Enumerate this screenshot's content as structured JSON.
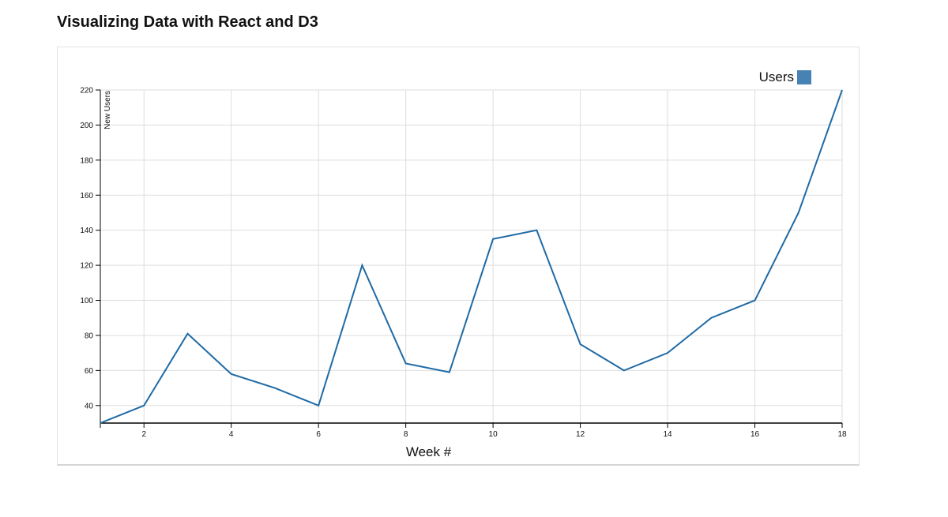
{
  "page": {
    "title": "Visualizing Data with React and D3"
  },
  "chart_data": {
    "type": "line",
    "title": "",
    "xlabel": "Week #",
    "ylabel": "New Users",
    "xlim": [
      1,
      18
    ],
    "ylim": [
      30,
      220
    ],
    "x_ticks": [
      2,
      4,
      6,
      8,
      10,
      12,
      14,
      16,
      18
    ],
    "y_ticks": [
      40,
      60,
      80,
      100,
      120,
      140,
      160,
      180,
      200,
      220
    ],
    "grid": true,
    "legend": "top-right",
    "series": [
      {
        "name": "Users",
        "color": "#1f6aa5",
        "legend_color": "#4682b4",
        "x": [
          1,
          2,
          3,
          4,
          5,
          6,
          7,
          8,
          9,
          10,
          11,
          12,
          13,
          14,
          15,
          16,
          17,
          18
        ],
        "values": [
          30,
          40,
          81,
          58,
          50,
          40,
          120,
          64,
          59,
          135,
          140,
          75,
          60,
          70,
          90,
          100,
          150,
          220
        ]
      }
    ]
  }
}
